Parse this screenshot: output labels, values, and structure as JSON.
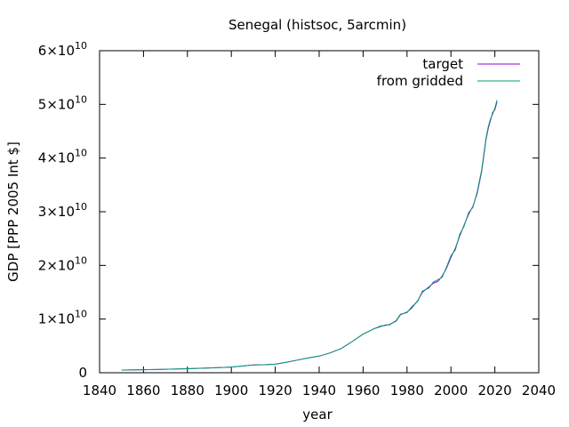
{
  "chart_data": {
    "type": "line",
    "title": "Senegal (histsoc, 5arcmin)",
    "xlabel": "year",
    "ylabel": "GDP [PPP 2005 Int $]",
    "xlim": [
      1840,
      2040
    ],
    "ylim": [
      0,
      60000000000
    ],
    "x_ticks": [
      1840,
      1860,
      1880,
      1900,
      1920,
      1940,
      1960,
      1980,
      2000,
      2020,
      2040
    ],
    "y_ticks": [
      {
        "value": 0,
        "mantissa": "0",
        "exp": ""
      },
      {
        "value": 10000000000,
        "mantissa": "1×10",
        "exp": "10"
      },
      {
        "value": 20000000000,
        "mantissa": "2×10",
        "exp": "10"
      },
      {
        "value": 30000000000,
        "mantissa": "3×10",
        "exp": "10"
      },
      {
        "value": 40000000000,
        "mantissa": "4×10",
        "exp": "10"
      },
      {
        "value": 50000000000,
        "mantissa": "5×10",
        "exp": "10"
      },
      {
        "value": 60000000000,
        "mantissa": "6×10",
        "exp": "10"
      }
    ],
    "legend_position": "top-right",
    "grid": false,
    "series": [
      {
        "name": "target",
        "color": "#9400d3",
        "x": [
          1850,
          1860,
          1870,
          1880,
          1890,
          1900,
          1905,
          1910,
          1915,
          1920,
          1925,
          1930,
          1935,
          1940,
          1945,
          1950,
          1955,
          1960,
          1965,
          1968,
          1970,
          1972,
          1975,
          1977,
          1980,
          1982,
          1985,
          1987,
          1990,
          1992,
          1994,
          1996,
          1998,
          2000,
          2002,
          2004,
          2006,
          2008,
          2010,
          2012,
          2014,
          2016,
          2017,
          2018,
          2019,
          2020,
          2021
        ],
        "y": [
          500000000,
          550000000,
          650000000,
          750000000,
          900000000,
          1050000000,
          1250000000,
          1450000000,
          1500000000,
          1600000000,
          1950000000,
          2350000000,
          2750000000,
          3100000000,
          3700000000,
          4500000000,
          5800000000,
          7200000000,
          8200000000,
          8700000000,
          8800000000,
          9000000000,
          9600000000,
          10800000000,
          11300000000,
          12000000000,
          13500000000,
          15000000000,
          16000000000,
          16700000000,
          17000000000,
          18000000000,
          19500000000,
          21500000000,
          23200000000,
          25500000000,
          27500000000,
          29500000000,
          31000000000,
          33500000000,
          37500000000,
          43500000000,
          45500000000,
          47000000000,
          48500000000,
          49000000000,
          50500000000
        ]
      },
      {
        "name": "from gridded",
        "color": "#009e73",
        "x": [
          1850,
          1860,
          1870,
          1880,
          1890,
          1900,
          1905,
          1910,
          1915,
          1920,
          1925,
          1930,
          1935,
          1940,
          1945,
          1950,
          1955,
          1960,
          1965,
          1968,
          1970,
          1972,
          1975,
          1977,
          1980,
          1982,
          1985,
          1987,
          1990,
          1992,
          1994,
          1996,
          1998,
          2000,
          2002,
          2004,
          2006,
          2008,
          2010,
          2012,
          2014,
          2016,
          2017,
          2018,
          2019,
          2020,
          2021
        ],
        "y": [
          500000000,
          550000000,
          650000000,
          750000000,
          900000000,
          1050000000,
          1250000000,
          1450000000,
          1500000000,
          1600000000,
          1950000000,
          2350000000,
          2750000000,
          3100000000,
          3700000000,
          4500000000,
          5800000000,
          7200000000,
          8200000000,
          8600000000,
          8900000000,
          8900000000,
          9700000000,
          10900000000,
          11200000000,
          12200000000,
          13400000000,
          15200000000,
          15800000000,
          16900000000,
          17300000000,
          17800000000,
          19700000000,
          21800000000,
          22900000000,
          25800000000,
          27300000000,
          29800000000,
          30800000000,
          33800000000,
          37800000000,
          43800000000,
          45800000000,
          47300000000,
          48200000000,
          49300000000,
          50800000000
        ]
      }
    ]
  }
}
